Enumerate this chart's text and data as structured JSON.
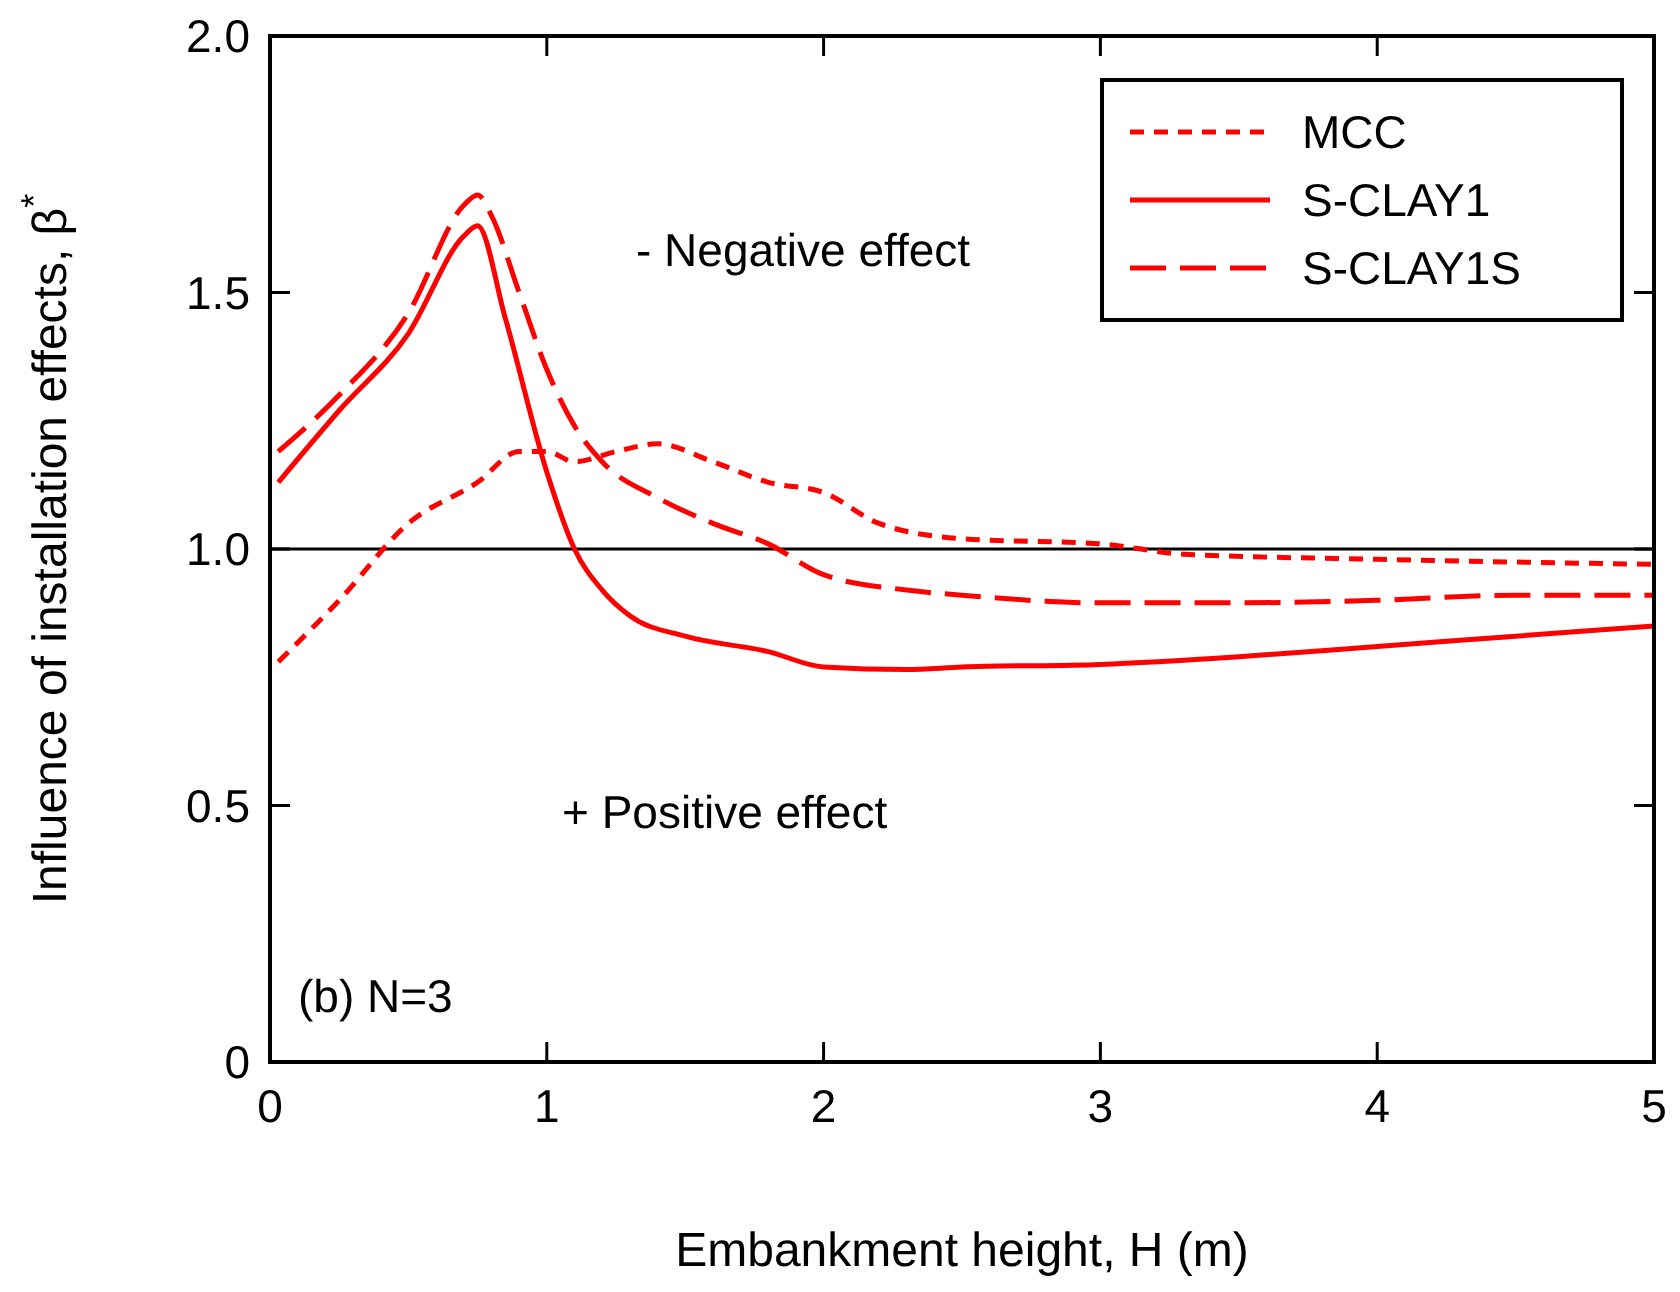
{
  "chart_data": {
    "type": "line",
    "xlabel": "Embankment height, H (m)",
    "ylabel": "Influence of installation effects, β$^{*}$",
    "xlim": [
      0,
      5
    ],
    "ylim": [
      0,
      2
    ],
    "xticks": [
      0,
      1,
      2,
      3,
      4,
      5
    ],
    "yticks": [
      {
        "value": 0,
        "label": "0"
      },
      {
        "value": 0.5,
        "label": "0.5"
      },
      {
        "value": 1,
        "label": "1.0"
      },
      {
        "value": 1.5,
        "label": "1.5"
      },
      {
        "value": 2,
        "label": "2.0"
      }
    ],
    "grid": false,
    "legend": "top right",
    "ref_lines": [
      {
        "axis": "y",
        "value": 1,
        "color": "#000000"
      }
    ],
    "annotations": [
      "- Negative effect",
      "+ Positive effect",
      "(b) N=3"
    ],
    "series": [
      {
        "name": "MCC",
        "color": "#ff0000",
        "line_style": "dotted",
        "x": [
          0.03,
          0.25,
          0.5,
          0.75,
          0.9,
          1.0,
          1.1,
          1.25,
          1.4,
          1.6,
          1.8,
          2.0,
          2.2,
          2.5,
          3.0,
          3.3,
          4.0,
          5.0
        ],
        "values": [
          0.78,
          0.9,
          1.05,
          1.13,
          1.19,
          1.19,
          1.17,
          1.19,
          1.205,
          1.17,
          1.13,
          1.11,
          1.05,
          1.02,
          1.01,
          0.99,
          0.98,
          0.97
        ]
      },
      {
        "name": "S-CLAY1",
        "color": "#ff0000",
        "line_style": "solid",
        "x": [
          0.03,
          0.25,
          0.5,
          0.7,
          0.75,
          0.85,
          1.0,
          1.1,
          1.2,
          1.3,
          1.5,
          1.8,
          2.0,
          2.3,
          2.5,
          3.0,
          3.5,
          4.0,
          4.5,
          5.0
        ],
        "values": [
          1.13,
          1.27,
          1.42,
          1.61,
          1.63,
          1.45,
          1.15,
          1.0,
          0.92,
          0.87,
          0.83,
          0.8,
          0.77,
          0.765,
          0.77,
          0.775,
          0.79,
          0.81,
          0.83,
          0.85
        ]
      },
      {
        "name": "S-CLAY1S",
        "color": "#ff0000",
        "line_style": "dashed",
        "x": [
          0.03,
          0.25,
          0.5,
          0.7,
          0.75,
          0.8,
          0.9,
          1.0,
          1.1,
          1.2,
          1.4,
          1.6,
          1.8,
          2.0,
          2.3,
          2.5,
          3.0,
          3.5,
          4.0,
          4.5,
          5.0
        ],
        "values": [
          1.19,
          1.3,
          1.46,
          1.67,
          1.69,
          1.65,
          1.5,
          1.35,
          1.24,
          1.17,
          1.1,
          1.05,
          1.01,
          0.95,
          0.92,
          0.91,
          0.895,
          0.895,
          0.9,
          0.91,
          0.91
        ]
      }
    ]
  }
}
